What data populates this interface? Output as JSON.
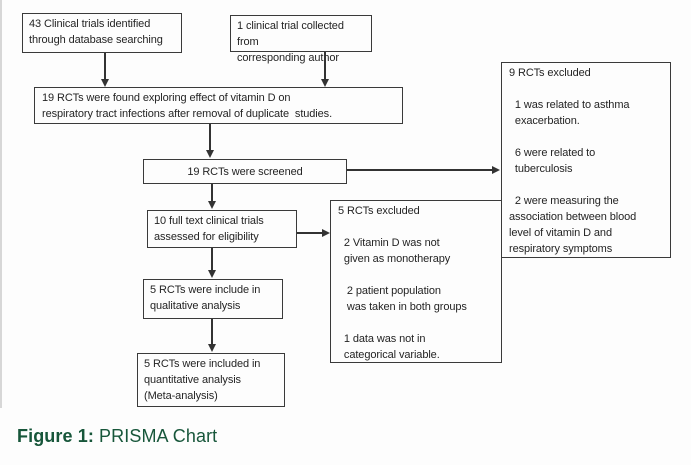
{
  "flowchart": {
    "boxes": {
      "identified": "43 Clinical trials identified\nthrough database searching",
      "collected": "1 clinical trial collected from\ncorresponding author",
      "duplicates": "19 RCTs were found exploring effect of vitamin D on\nrespiratory tract infections after removal of duplicate  studies.",
      "screened": "19 RCTs were screened",
      "fulltext": "10 full text clinical trials\nassessed for eligibility",
      "excluded_fulltext": "5 RCTs excluded\n\n  2 Vitamin D was not\n  given as monotherapy\n\n   2 patient population\n   was taken in both groups\n\n  1 data was not in\n  categorical variable.",
      "excluded_screening": "9 RCTs excluded\n\n  1 was related to asthma\n  exacerbation.\n\n  6 were related to\n  tuberculosis\n\n  2 were measuring the\nassociation between blood\nlevel of vitamin D and\nrespiratory symptoms",
      "qualitative": "5 RCTs were include in\nqualitative analysis",
      "quantitative": "5 RCTs were included in\nquantitative analysis\n(Meta-analysis)"
    },
    "caption": {
      "prefix": "Figure 1:",
      "title": "PRISMA Chart"
    },
    "colors": {
      "caption_green": "#17563a",
      "box_border": "#3a3a3a",
      "arrow": "#333333",
      "text": "#242424",
      "background": "#fdfdfd"
    }
  }
}
